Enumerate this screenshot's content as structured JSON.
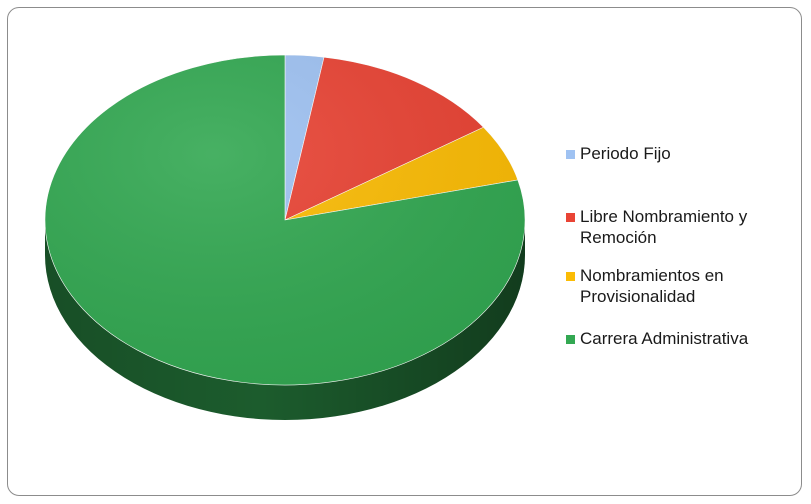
{
  "chart_data": {
    "type": "pie",
    "title": "",
    "three_d": true,
    "legend_position": "right",
    "slices": [
      {
        "label": "Periodo Fijo",
        "value": 2.6,
        "color": "#9fc2f2"
      },
      {
        "label": "Libre Nombramiento y Remoción",
        "value": 12.9,
        "color": "#e94435"
      },
      {
        "label": "Nombramientos en Provisionalidad",
        "value": 5.6,
        "color": "#fbbc05"
      },
      {
        "label": "Carrera Administrativa",
        "value": 78.9,
        "color": "#33a852"
      }
    ]
  },
  "legend": {
    "items": [
      {
        "label": "Periodo Fijo",
        "color": "#9fc2f2"
      },
      {
        "label": "Libre Nombramiento y Remoción",
        "color": "#e94435"
      },
      {
        "label": "Nombramientos en Provisionalidad",
        "color": "#fbbc05"
      },
      {
        "label": "Carrera Administrativa",
        "color": "#33a852"
      }
    ]
  }
}
